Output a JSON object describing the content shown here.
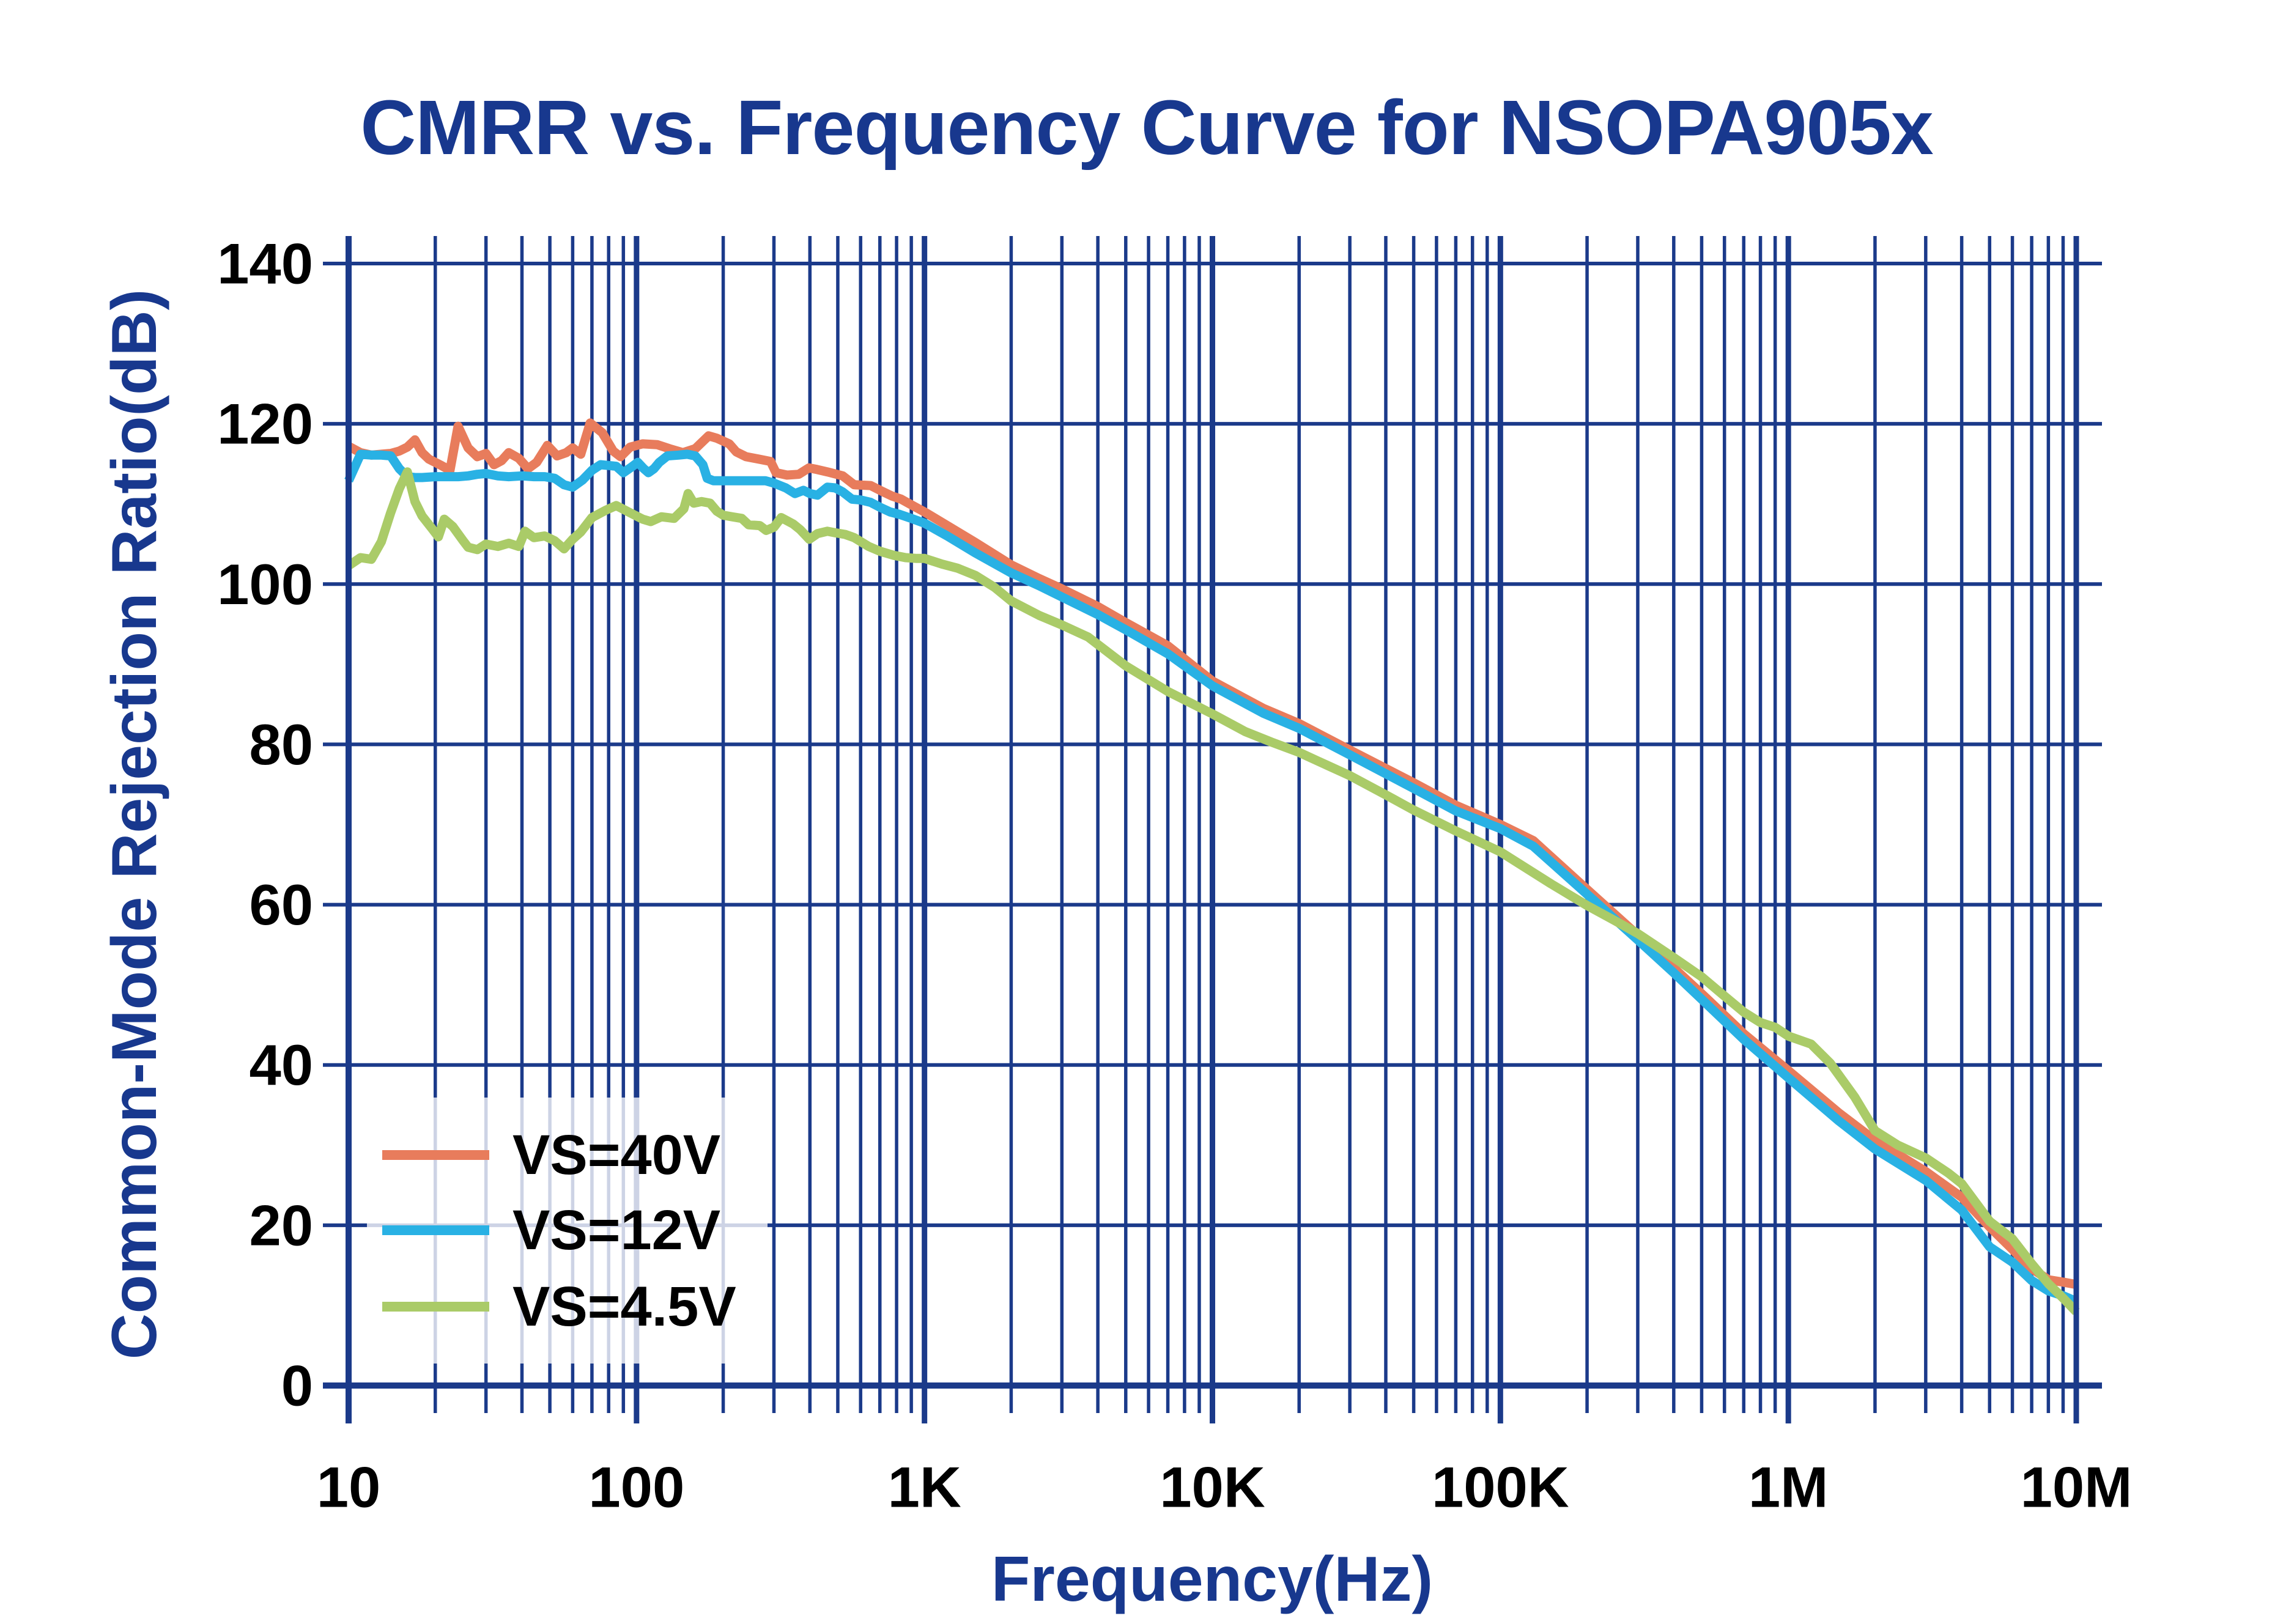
{
  "title": "CMRR vs. Frequency Curve for NSOPA905x",
  "chart_data": {
    "type": "line",
    "x_scale": "log",
    "title": "CMRR vs. Frequency Curve for NSOPA905x",
    "xlabel": "Frequency(Hz)",
    "ylabel": "Common-Mode Rejection Ratio(dB)",
    "x_range": [
      10,
      10000000
    ],
    "ylim": [
      0,
      140
    ],
    "y_tick_step": 20,
    "y_ticks": [
      0,
      20,
      40,
      60,
      80,
      100,
      120,
      140
    ],
    "x_ticks": [
      {
        "f": 10,
        "label": "10"
      },
      {
        "f": 100,
        "label": "100"
      },
      {
        "f": 1000,
        "label": "1K"
      },
      {
        "f": 10000,
        "label": "10K"
      },
      {
        "f": 100000,
        "label": "100K"
      },
      {
        "f": 1000000,
        "label": "1M"
      },
      {
        "f": 10000000,
        "label": "10M"
      }
    ],
    "grid": "on",
    "grid_style": "log minor verticals every decade step, horizontal lines every 20 dB",
    "legend_position": "lower-left",
    "series": [
      {
        "name": "VS=40V",
        "color": "#E87C5C",
        "points": [
          [
            10,
            117.2
          ],
          [
            11,
            116.4
          ],
          [
            12,
            116.1
          ],
          [
            13,
            116.2
          ],
          [
            14,
            116.3
          ],
          [
            15,
            116.6
          ],
          [
            16,
            117.1
          ],
          [
            17,
            118.0
          ],
          [
            18,
            116.4
          ],
          [
            19,
            115.6
          ],
          [
            21,
            114.8
          ],
          [
            22.5,
            114.2
          ],
          [
            24,
            119.7
          ],
          [
            26,
            117.0
          ],
          [
            28,
            115.9
          ],
          [
            30,
            116.3
          ],
          [
            32,
            114.9
          ],
          [
            34,
            115.4
          ],
          [
            36,
            116.4
          ],
          [
            39,
            115.7
          ],
          [
            42,
            114.4
          ],
          [
            45,
            115.2
          ],
          [
            49,
            117.3
          ],
          [
            53,
            116.0
          ],
          [
            57,
            116.4
          ],
          [
            60,
            117.0
          ],
          [
            64,
            116.2
          ],
          [
            69,
            120.1
          ],
          [
            76,
            118.9
          ],
          [
            83,
            116.6
          ],
          [
            88,
            115.9
          ],
          [
            95,
            117.1
          ],
          [
            105,
            117.5
          ],
          [
            118,
            117.4
          ],
          [
            130,
            116.9
          ],
          [
            145,
            116.4
          ],
          [
            160,
            116.9
          ],
          [
            178,
            118.5
          ],
          [
            190,
            118.2
          ],
          [
            210,
            117.5
          ],
          [
            222,
            116.5
          ],
          [
            240,
            115.9
          ],
          [
            265,
            115.6
          ],
          [
            292,
            115.3
          ],
          [
            305,
            113.9
          ],
          [
            333,
            113.6
          ],
          [
            366,
            113.7
          ],
          [
            397,
            114.5
          ],
          [
            424,
            114.3
          ],
          [
            460,
            114.0
          ],
          [
            520,
            113.5
          ],
          [
            570,
            112.4
          ],
          [
            650,
            112.3
          ],
          [
            710,
            111.6
          ],
          [
            770,
            111.0
          ],
          [
            830,
            110.6
          ],
          [
            920,
            109.7
          ],
          [
            1000,
            109.0
          ],
          [
            1200,
            107.3
          ],
          [
            1500,
            105.2
          ],
          [
            2000,
            102.4
          ],
          [
            2500,
            100.7
          ],
          [
            3000,
            99.4
          ],
          [
            4000,
            97.2
          ],
          [
            5000,
            95.2
          ],
          [
            7000,
            92.3
          ],
          [
            10000,
            87.9
          ],
          [
            15000,
            84.5
          ],
          [
            20000,
            82.6
          ],
          [
            30000,
            79.3
          ],
          [
            50000,
            75.2
          ],
          [
            70000,
            72.4
          ],
          [
            100000,
            70.0
          ],
          [
            130000,
            68.0
          ],
          [
            200000,
            61.9
          ],
          [
            300000,
            56.2
          ],
          [
            400000,
            52.1
          ],
          [
            500000,
            48.9
          ],
          [
            700000,
            43.9
          ],
          [
            1000000,
            39.3
          ],
          [
            1500000,
            34.0
          ],
          [
            2000000,
            30.6
          ],
          [
            3000000,
            26.7
          ],
          [
            4000000,
            23.5
          ],
          [
            5000000,
            19.8
          ],
          [
            6000000,
            17.0
          ],
          [
            7000000,
            14.6
          ],
          [
            8000000,
            13.2
          ],
          [
            9000000,
            12.9
          ],
          [
            10000000,
            12.6
          ]
        ]
      },
      {
        "name": "VS=12V",
        "color": "#29B1E4",
        "points": [
          [
            10,
            112.9
          ],
          [
            11,
            116.2
          ],
          [
            12,
            116.1
          ],
          [
            13,
            116.1
          ],
          [
            14,
            116.0
          ],
          [
            15,
            114.4
          ],
          [
            16,
            113.4
          ],
          [
            17,
            113.3
          ],
          [
            18,
            113.3
          ],
          [
            20,
            113.4
          ],
          [
            22,
            113.4
          ],
          [
            24,
            113.4
          ],
          [
            26,
            113.5
          ],
          [
            28,
            113.7
          ],
          [
            30,
            113.8
          ],
          [
            33,
            113.5
          ],
          [
            36,
            113.4
          ],
          [
            40,
            113.5
          ],
          [
            44,
            113.4
          ],
          [
            48,
            113.4
          ],
          [
            52,
            113.2
          ],
          [
            56,
            112.4
          ],
          [
            60,
            112.1
          ],
          [
            65,
            113.0
          ],
          [
            70,
            114.2
          ],
          [
            75,
            114.9
          ],
          [
            80,
            114.8
          ],
          [
            85,
            114.7
          ],
          [
            90,
            113.9
          ],
          [
            96,
            114.6
          ],
          [
            101,
            115.2
          ],
          [
            106,
            114.4
          ],
          [
            110,
            113.9
          ],
          [
            115,
            114.4
          ],
          [
            120,
            115.2
          ],
          [
            128,
            116.0
          ],
          [
            140,
            116.1
          ],
          [
            150,
            116.2
          ],
          [
            160,
            116.0
          ],
          [
            170,
            114.9
          ],
          [
            176,
            113.2
          ],
          [
            185,
            112.9
          ],
          [
            200,
            112.9
          ],
          [
            220,
            112.9
          ],
          [
            250,
            112.9
          ],
          [
            280,
            112.9
          ],
          [
            300,
            112.6
          ],
          [
            330,
            112.0
          ],
          [
            355,
            111.3
          ],
          [
            380,
            111.7
          ],
          [
            400,
            111.3
          ],
          [
            425,
            111.1
          ],
          [
            460,
            112.1
          ],
          [
            490,
            112.0
          ],
          [
            520,
            111.5
          ],
          [
            560,
            110.6
          ],
          [
            600,
            110.5
          ],
          [
            650,
            110.2
          ],
          [
            700,
            109.6
          ],
          [
            760,
            109.0
          ],
          [
            820,
            108.7
          ],
          [
            900,
            108.2
          ],
          [
            1000,
            107.6
          ],
          [
            1200,
            106.0
          ],
          [
            1500,
            103.9
          ],
          [
            2000,
            101.4
          ],
          [
            2500,
            99.8
          ],
          [
            3000,
            98.4
          ],
          [
            4000,
            96.2
          ],
          [
            5000,
            94.3
          ],
          [
            7000,
            91.3
          ],
          [
            10000,
            87.3
          ],
          [
            15000,
            83.9
          ],
          [
            20000,
            82.0
          ],
          [
            30000,
            78.7
          ],
          [
            50000,
            74.5
          ],
          [
            70000,
            71.7
          ],
          [
            100000,
            69.5
          ],
          [
            130000,
            67.3
          ],
          [
            200000,
            61.3
          ],
          [
            300000,
            55.6
          ],
          [
            400000,
            51.5
          ],
          [
            500000,
            48.2
          ],
          [
            700000,
            43.2
          ],
          [
            1000000,
            38.4
          ],
          [
            1500000,
            33.0
          ],
          [
            2000000,
            29.5
          ],
          [
            3000000,
            25.6
          ],
          [
            4000000,
            21.9
          ],
          [
            5000000,
            17.3
          ],
          [
            6000000,
            15.4
          ],
          [
            7000000,
            13.1
          ],
          [
            8000000,
            11.8
          ],
          [
            9000000,
            11.2
          ],
          [
            10000000,
            10.5
          ]
        ]
      },
      {
        "name": "VS=4.5V",
        "color": "#AACB68",
        "points": [
          [
            10,
            102.3
          ],
          [
            11,
            103.3
          ],
          [
            12,
            103.1
          ],
          [
            13,
            105.3
          ],
          [
            14,
            108.9
          ],
          [
            15,
            111.9
          ],
          [
            16,
            114.0
          ],
          [
            17,
            110.3
          ],
          [
            18,
            108.5
          ],
          [
            19.5,
            106.9
          ],
          [
            20.5,
            105.9
          ],
          [
            21.5,
            108.1
          ],
          [
            23,
            107.2
          ],
          [
            25,
            105.4
          ],
          [
            26,
            104.6
          ],
          [
            28,
            104.3
          ],
          [
            30,
            105.0
          ],
          [
            33,
            104.7
          ],
          [
            36,
            105.1
          ],
          [
            39,
            104.7
          ],
          [
            41,
            106.6
          ],
          [
            44,
            105.8
          ],
          [
            48,
            106.0
          ],
          [
            52,
            105.4
          ],
          [
            56,
            104.4
          ],
          [
            60,
            105.6
          ],
          [
            64,
            106.5
          ],
          [
            70,
            108.3
          ],
          [
            78,
            109.2
          ],
          [
            85,
            109.8
          ],
          [
            95,
            108.9
          ],
          [
            105,
            108.1
          ],
          [
            112,
            107.8
          ],
          [
            122,
            108.4
          ],
          [
            135,
            108.2
          ],
          [
            146,
            109.4
          ],
          [
            151,
            111.3
          ],
          [
            158,
            110.1
          ],
          [
            168,
            110.3
          ],
          [
            180,
            110.1
          ],
          [
            190,
            109.1
          ],
          [
            200,
            108.6
          ],
          [
            215,
            108.4
          ],
          [
            232,
            108.2
          ],
          [
            245,
            107.4
          ],
          [
            268,
            107.3
          ],
          [
            282,
            106.7
          ],
          [
            300,
            107.1
          ],
          [
            318,
            108.3
          ],
          [
            350,
            107.5
          ],
          [
            370,
            106.8
          ],
          [
            398,
            105.6
          ],
          [
            425,
            106.3
          ],
          [
            460,
            106.6
          ],
          [
            490,
            106.4
          ],
          [
            530,
            106.2
          ],
          [
            570,
            105.8
          ],
          [
            640,
            104.7
          ],
          [
            700,
            104.1
          ],
          [
            780,
            103.6
          ],
          [
            860,
            103.3
          ],
          [
            940,
            103.2
          ],
          [
            1000,
            103.2
          ],
          [
            1150,
            102.5
          ],
          [
            1300,
            102.0
          ],
          [
            1500,
            101.1
          ],
          [
            1750,
            99.6
          ],
          [
            2000,
            97.9
          ],
          [
            2500,
            96.1
          ],
          [
            3000,
            94.9
          ],
          [
            3700,
            93.4
          ],
          [
            5000,
            89.8
          ],
          [
            7000,
            86.6
          ],
          [
            10000,
            83.8
          ],
          [
            13000,
            81.6
          ],
          [
            16000,
            80.3
          ],
          [
            20000,
            79.0
          ],
          [
            25000,
            77.4
          ],
          [
            30000,
            76.1
          ],
          [
            40000,
            73.7
          ],
          [
            50000,
            71.8
          ],
          [
            70000,
            69.2
          ],
          [
            100000,
            66.6
          ],
          [
            150000,
            62.6
          ],
          [
            200000,
            59.9
          ],
          [
            250000,
            58.0
          ],
          [
            300000,
            56.4
          ],
          [
            400000,
            53.4
          ],
          [
            500000,
            51.0
          ],
          [
            600000,
            48.6
          ],
          [
            700000,
            46.6
          ],
          [
            800000,
            45.3
          ],
          [
            900000,
            44.7
          ],
          [
            1000000,
            43.6
          ],
          [
            1200000,
            42.6
          ],
          [
            1400000,
            40.2
          ],
          [
            1700000,
            36.0
          ],
          [
            2000000,
            31.8
          ],
          [
            2400000,
            30.0
          ],
          [
            3000000,
            28.4
          ],
          [
            3600000,
            26.5
          ],
          [
            4000000,
            25.2
          ],
          [
            5000000,
            20.5
          ],
          [
            6000000,
            18.3
          ],
          [
            7000000,
            15.2
          ],
          [
            8000000,
            12.7
          ],
          [
            9000000,
            10.9
          ],
          [
            10000000,
            9.2
          ]
        ]
      }
    ]
  },
  "legend": {
    "items": [
      {
        "label": "VS=40V",
        "color": "#E87C5C"
      },
      {
        "label": "VS=12V",
        "color": "#29B1E4"
      },
      {
        "label": "VS=4.5V",
        "color": "#AACB68"
      }
    ]
  },
  "colors": {
    "grid": "#1B3A8A",
    "frame": "#1B3A8A",
    "heading_blue": "#18388E",
    "tick_text": "#000000",
    "background": "#FFFFFF"
  }
}
